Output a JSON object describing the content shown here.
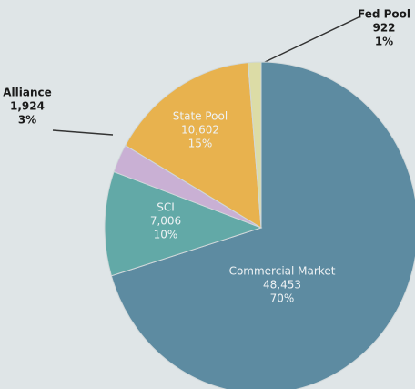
{
  "chart_data": {
    "type": "pie",
    "categories": [
      "Commercial Market",
      "SCI",
      "Alliance",
      "State Pool",
      "Fed Pool"
    ],
    "values": [
      48453,
      7006,
      1924,
      10602,
      922
    ],
    "value_labels": [
      "48,453",
      "7,006",
      "1,924",
      "10,602",
      "922"
    ],
    "percent_labels": [
      "70%",
      "10%",
      "3%",
      "15%",
      "1%"
    ],
    "colors": [
      "#5d8ba1",
      "#62a9a7",
      "#c9b0d4",
      "#e8b24e",
      "#dcdca6"
    ]
  }
}
